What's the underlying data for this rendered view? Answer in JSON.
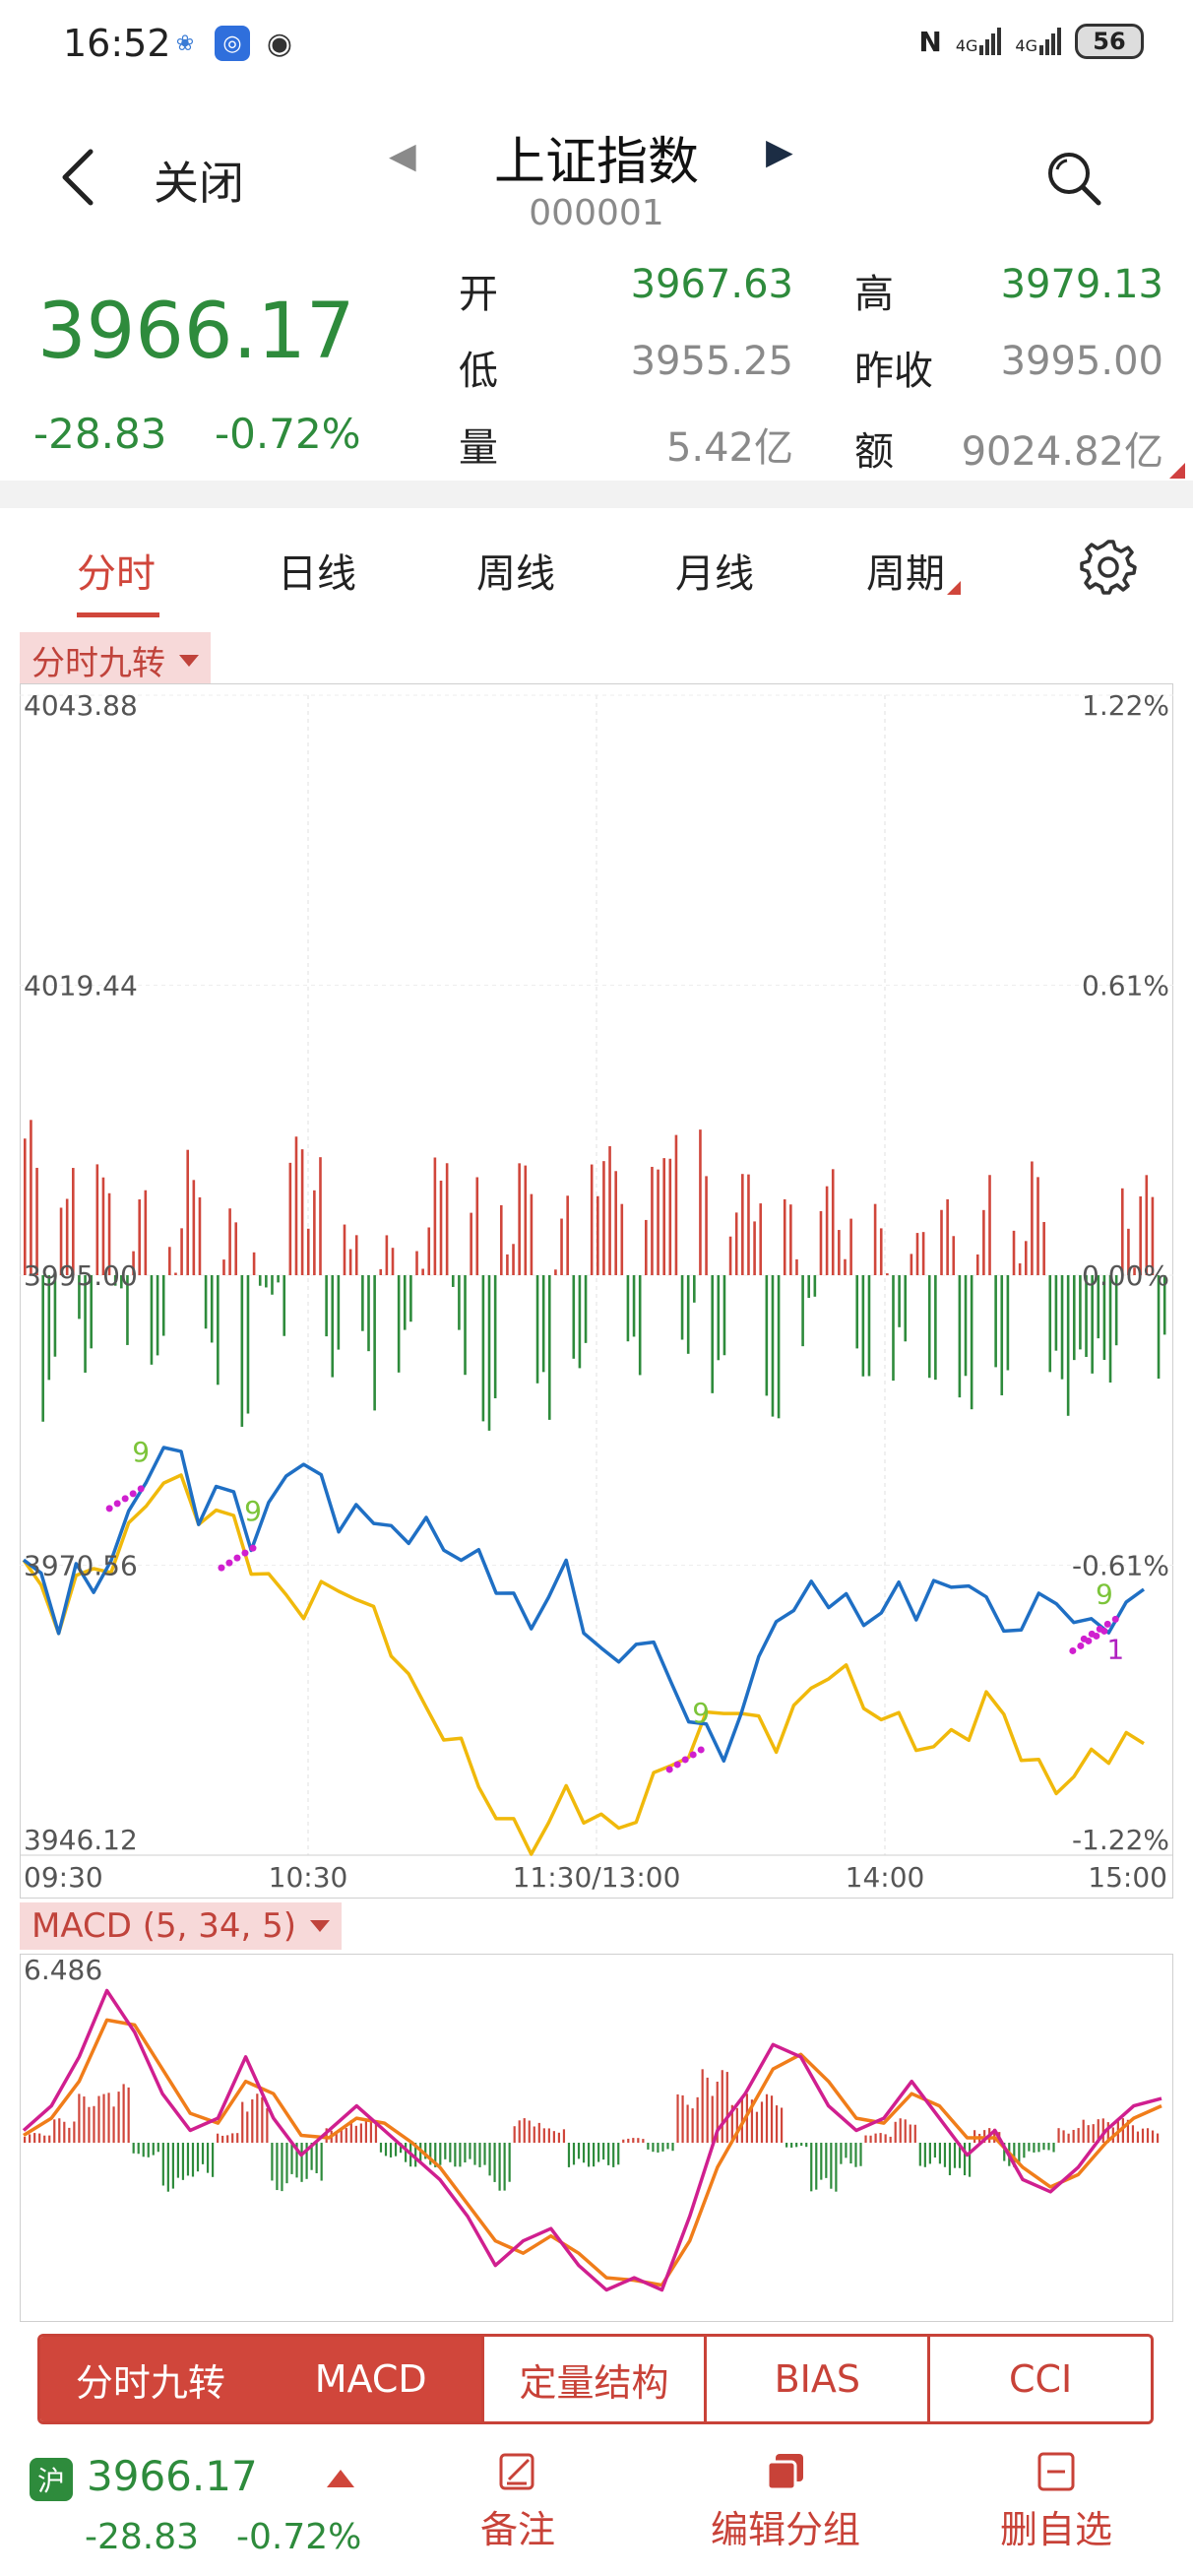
{
  "status_bar": {
    "time": "16:52",
    "signal_1": "4G",
    "signal_2": "4G",
    "battery": "56"
  },
  "header": {
    "close_label": "关闭",
    "title": "上证指数",
    "code": "000001"
  },
  "quote": {
    "price": "3966.17",
    "change": "-28.83",
    "change_pct": "-0.72%",
    "fields": [
      {
        "label": "开",
        "value": "3967.63",
        "color": "#2e8b3c"
      },
      {
        "label": "高",
        "value": "3979.13",
        "color": "#2e8b3c"
      },
      {
        "label": "低",
        "value": "3955.25",
        "color": "#8a8a8a"
      },
      {
        "label": "昨收",
        "value": "3995.00",
        "color": "#8a8a8a"
      },
      {
        "label": "量",
        "value": "5.42亿",
        "color": "#8a8a8a"
      },
      {
        "label": "额",
        "value": "9024.82亿",
        "color": "#8a8a8a"
      }
    ]
  },
  "tabs": [
    {
      "label": "分时",
      "active": true
    },
    {
      "label": "日线",
      "active": false
    },
    {
      "label": "周线",
      "active": false
    },
    {
      "label": "月线",
      "active": false
    },
    {
      "label": "周期",
      "active": false
    }
  ],
  "main_chart_tag": "分时九转",
  "macd_tag": "MACD (5, 34, 5)",
  "indicator_tabs": [
    {
      "label": "分时九转",
      "active": true
    },
    {
      "label": "MACD",
      "active": true
    },
    {
      "label": "定量结构",
      "active": false
    },
    {
      "label": "BIAS",
      "active": false
    },
    {
      "label": "CCI",
      "active": false
    }
  ],
  "footer": {
    "market_badge": "沪",
    "price": "3966.17",
    "change": "-28.83",
    "change_pct": "-0.72%",
    "buttons": [
      {
        "label": "备注",
        "icon": "edit-icon"
      },
      {
        "label": "编辑分组",
        "icon": "group-icon"
      },
      {
        "label": "删自选",
        "icon": "minus-box-icon"
      }
    ]
  },
  "colors": {
    "up": "#d0463b",
    "down": "#2e8b3c",
    "price_line": "#1f6fc4",
    "avg_line": "#f0b90b",
    "dif_line": "#d01f8f",
    "dea_line": "#f07d1a"
  },
  "chart_data": [
    {
      "type": "line",
      "title": "分时九转",
      "y_left_ticks": [
        "4043.88",
        "4019.44",
        "3995.00",
        "3970.56",
        "3946.12"
      ],
      "y_right_ticks": [
        "1.22%",
        "0.61%",
        "0.00%",
        "-0.61%",
        "-1.22%"
      ],
      "x_ticks": [
        "09:30",
        "10:30",
        "11:30/13:00",
        "14:00",
        "15:00"
      ],
      "ylim": [
        3946.12,
        4043.88
      ],
      "markers": [
        {
          "label": "9",
          "t": 0.11
        },
        {
          "label": "9",
          "t": 0.21
        },
        {
          "label": "9",
          "t": 0.61
        },
        {
          "label": "9",
          "t": 0.97
        },
        {
          "label": "1",
          "t": 0.98
        }
      ],
      "series": [
        {
          "name": "price",
          "values": [
            3971,
            3969,
            3966,
            3970,
            3968,
            3972,
            3974,
            3978,
            3981,
            3979,
            3975,
            3977,
            3976,
            3973,
            3975,
            3978,
            3980,
            3977,
            3974,
            3976,
            3973,
            3975,
            3972,
            3974,
            3973,
            3970,
            3972,
            3969,
            3967,
            3966,
            3968,
            3970,
            3966,
            3963,
            3962,
            3965,
            3963,
            3961,
            3958,
            3956,
            3955,
            3958,
            3962,
            3967,
            3966,
            3969,
            3968,
            3967,
            3966,
            3967,
            3968,
            3967,
            3969,
            3968,
            3970,
            3967,
            3965,
            3966,
            3967,
            3968,
            3966,
            3965,
            3966,
            3967,
            3968
          ]
        },
        {
          "name": "avg",
          "values": [
            3971,
            3968,
            3966,
            3969,
            3970,
            3971,
            3973,
            3976,
            3978,
            3977,
            3975,
            3975,
            3974,
            3971,
            3969,
            3968,
            3967,
            3968,
            3969,
            3968,
            3966,
            3964,
            3961,
            3958,
            3957,
            3955,
            3952,
            3950,
            3948,
            3947,
            3949,
            3951,
            3950,
            3949,
            3948,
            3950,
            3952,
            3954,
            3955,
            3957,
            3959,
            3958,
            3957,
            3956,
            3958,
            3960,
            3962,
            3961,
            3959,
            3958,
            3957,
            3956,
            3955,
            3956,
            3957,
            3959,
            3958,
            3955,
            3953,
            3952,
            3953,
            3954,
            3955,
            3956,
            3955
          ]
        },
        {
          "name": "breadth",
          "values": [
            0.8,
            -0.6,
            0.5,
            -0.3,
            0.6,
            -0.2,
            0.4,
            -0.5,
            0.3,
            0.6,
            -0.4,
            0.2,
            -0.8,
            0.1,
            -0.3,
            0.9,
            0.5,
            -0.4,
            0.3,
            -0.6,
            0.2,
            -0.5,
            0.3,
            0.7,
            -0.3,
            0.5,
            -0.9,
            0.4,
            0.6,
            -0.7,
            0.3,
            -0.5,
            0.8,
            0.6,
            -0.4,
            0.5,
            0.9,
            -0.3,
            0.7,
            -0.5,
            0.4,
            0.6,
            -0.8,
            0.3,
            -0.2,
            0.5,
            0.4,
            -0.6,
            0.3,
            -0.5,
            0.2,
            -0.4,
            0.3,
            -0.7,
            0.4,
            -0.6,
            0.3,
            0.5,
            -0.5,
            -0.7,
            -0.4,
            -0.5,
            0.3,
            0.6,
            -0.6
          ]
        }
      ]
    },
    {
      "type": "line",
      "title": "MACD (5, 34, 5)",
      "y_top_tick": "6.486",
      "series": [
        {
          "name": "DIF",
          "values": [
            0.5,
            1.5,
            3.5,
            6.2,
            4.5,
            2.0,
            0.5,
            1.0,
            3.5,
            1.0,
            -0.5,
            0.5,
            1.5,
            0.5,
            -0.5,
            -1.5,
            -3.0,
            -5.0,
            -4.0,
            -3.5,
            -5.0,
            -6.0,
            -5.5,
            -6.0,
            -3.0,
            0.5,
            2.0,
            4.0,
            3.5,
            1.5,
            0.5,
            1.0,
            2.5,
            1.0,
            -0.5,
            0.5,
            -1.5,
            -2.0,
            -1.0,
            0.5,
            1.5,
            1.8
          ]
        },
        {
          "name": "DEA",
          "values": [
            0.3,
            1.0,
            2.5,
            5.0,
            4.8,
            3.0,
            1.2,
            0.8,
            2.5,
            2.0,
            0.3,
            0.2,
            1.0,
            0.8,
            0.0,
            -1.0,
            -2.5,
            -4.0,
            -4.5,
            -3.8,
            -4.5,
            -5.5,
            -5.6,
            -5.8,
            -4.0,
            -1.0,
            1.0,
            3.0,
            3.6,
            2.5,
            1.0,
            0.8,
            2.0,
            1.5,
            0.2,
            0.2,
            -1.0,
            -1.8,
            -1.3,
            0.0,
            1.0,
            1.5
          ]
        },
        {
          "name": "MACD",
          "values": [
            0.4,
            1.0,
            2.0,
            2.4,
            -0.6,
            -2.0,
            -1.4,
            0.4,
            2.0,
            -2.0,
            -1.6,
            0.6,
            1.0,
            -0.6,
            -1.0,
            -1.0,
            -1.0,
            -2.0,
            1.0,
            0.6,
            -1.0,
            -1.0,
            0.2,
            -0.4,
            2.0,
            3.0,
            2.0,
            2.0,
            -0.2,
            -2.0,
            -1.0,
            0.4,
            1.0,
            -1.0,
            -1.4,
            0.6,
            -1.0,
            -0.4,
            0.6,
            1.0,
            1.0,
            0.6
          ]
        }
      ]
    }
  ]
}
